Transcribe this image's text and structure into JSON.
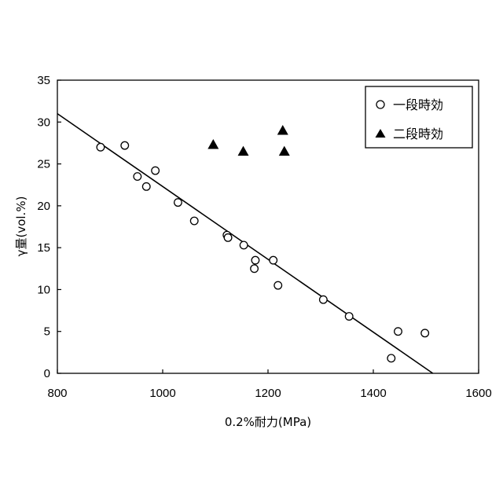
{
  "chart_data": {
    "type": "scatter",
    "xlabel": "0.2%耐力(MPa)",
    "ylabel": "γ量(vol.%)",
    "xlim": [
      800,
      1600
    ],
    "ylim": [
      0,
      35
    ],
    "xticks": [
      800,
      1000,
      1200,
      1400,
      1600
    ],
    "yticks": [
      0,
      5,
      10,
      15,
      20,
      25,
      30,
      35
    ],
    "xtick_labels": [
      "800",
      "1000",
      "1200",
      "1400",
      "1600"
    ],
    "ytick_labels": [
      "0",
      "5",
      "10",
      "15",
      "20",
      "25",
      "30",
      "35"
    ],
    "grid": false,
    "legend_position": "top-right",
    "series": [
      {
        "name": "一段時効",
        "marker": "open-circle",
        "color": "#000000",
        "points": [
          {
            "x": 882,
            "y": 27.0
          },
          {
            "x": 928,
            "y": 27.2
          },
          {
            "x": 952,
            "y": 23.5
          },
          {
            "x": 969,
            "y": 22.3
          },
          {
            "x": 986,
            "y": 24.2
          },
          {
            "x": 1029,
            "y": 20.4
          },
          {
            "x": 1060,
            "y": 18.2
          },
          {
            "x": 1122,
            "y": 16.5
          },
          {
            "x": 1124,
            "y": 16.2
          },
          {
            "x": 1154,
            "y": 15.3
          },
          {
            "x": 1174,
            "y": 12.5
          },
          {
            "x": 1176,
            "y": 13.5
          },
          {
            "x": 1210,
            "y": 13.5
          },
          {
            "x": 1219,
            "y": 10.5
          },
          {
            "x": 1305,
            "y": 8.8
          },
          {
            "x": 1354,
            "y": 6.8
          },
          {
            "x": 1434,
            "y": 1.8
          },
          {
            "x": 1447,
            "y": 5.0
          },
          {
            "x": 1498,
            "y": 4.8
          }
        ]
      },
      {
        "name": "二段時効",
        "marker": "filled-triangle",
        "color": "#000000",
        "points": [
          {
            "x": 1096,
            "y": 27.3
          },
          {
            "x": 1153,
            "y": 26.5
          },
          {
            "x": 1228,
            "y": 29.0
          },
          {
            "x": 1231,
            "y": 26.5
          }
        ]
      }
    ],
    "fit_line": {
      "x": [
        800,
        1513
      ],
      "y": [
        31.0,
        0
      ]
    }
  }
}
